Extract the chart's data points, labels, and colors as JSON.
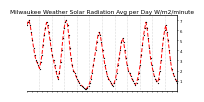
{
  "title": "Milwaukee Weather Solar Radiation Avg per Day W/m2/minute",
  "line_color": "#FF0000",
  "bg_color": "#ffffff",
  "grid_color": "#bbbbbb",
  "text_color": "#000000",
  "y_values": [
    6.5,
    6.8,
    7.0,
    6.5,
    5.8,
    5.0,
    4.2,
    3.5,
    3.0,
    2.8,
    2.5,
    2.2,
    2.8,
    3.5,
    4.5,
    5.5,
    6.2,
    6.8,
    6.5,
    5.8,
    5.0,
    4.2,
    3.5,
    3.0,
    2.5,
    2.0,
    1.5,
    1.2,
    1.8,
    2.8,
    4.0,
    5.2,
    6.2,
    6.8,
    7.0,
    6.5,
    5.5,
    4.2,
    3.2,
    2.5,
    2.0,
    1.8,
    1.5,
    1.2,
    1.0,
    0.8,
    0.6,
    0.5,
    0.4,
    0.3,
    0.2,
    0.2,
    0.3,
    0.5,
    0.8,
    1.2,
    1.8,
    2.5,
    3.2,
    4.0,
    4.8,
    5.5,
    5.8,
    5.5,
    4.8,
    4.0,
    3.2,
    2.5,
    2.0,
    1.5,
    1.2,
    1.0,
    0.8,
    0.6,
    0.5,
    0.8,
    1.2,
    1.8,
    2.5,
    3.2,
    4.0,
    4.8,
    5.2,
    4.8,
    4.0,
    3.2,
    2.5,
    2.0,
    1.8,
    1.5,
    1.2,
    1.0,
    0.8,
    0.6,
    0.8,
    1.2,
    1.8,
    2.5,
    3.5,
    4.5,
    5.5,
    6.2,
    6.8,
    6.2,
    5.2,
    4.2,
    3.2,
    2.5,
    2.0,
    1.5,
    1.2,
    1.0,
    0.8,
    1.2,
    2.0,
    3.0,
    4.2,
    5.2,
    6.0,
    6.5,
    5.8,
    5.0,
    4.0,
    3.0,
    2.2,
    1.8,
    1.5,
    1.2,
    1.0,
    0.8
  ],
  "ylim": [
    0.0,
    7.5
  ],
  "ytick_values": [
    1,
    2,
    3,
    4,
    5,
    6,
    7
  ],
  "ytick_labels": [
    "1",
    "2",
    "3",
    "4",
    "5",
    "6",
    "7"
  ],
  "n_vert_grid": 11,
  "title_fontsize": 4.2,
  "tick_fontsize": 2.8,
  "line_width": 0.7,
  "dashes": [
    4,
    2
  ],
  "marker_size": 1.2
}
